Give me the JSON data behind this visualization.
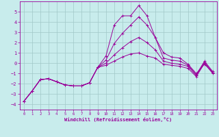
{
  "xlabel": "Windchill (Refroidissement éolien,°C)",
  "background_color": "#c8ecec",
  "line_color": "#990099",
  "grid_color": "#a0c8c8",
  "xlim": [
    -0.5,
    23.5
  ],
  "ylim": [
    -4.5,
    6.0
  ],
  "xticks": [
    0,
    1,
    2,
    3,
    4,
    5,
    6,
    7,
    8,
    9,
    10,
    11,
    12,
    13,
    14,
    15,
    16,
    17,
    18,
    19,
    20,
    21,
    22,
    23
  ],
  "yticks": [
    -4,
    -3,
    -2,
    -1,
    0,
    1,
    2,
    3,
    4,
    5
  ],
  "series_x": [
    [
      0,
      1,
      2,
      3,
      4,
      5,
      6,
      7,
      8,
      9,
      10,
      11,
      12,
      13,
      14,
      15,
      16,
      17,
      18,
      19,
      20,
      21,
      22,
      23
    ],
    [
      0,
      1,
      2,
      3,
      4,
      5,
      6,
      7,
      8,
      9,
      10,
      11,
      12,
      13,
      14,
      15,
      16,
      17,
      18,
      19,
      20,
      21,
      22,
      23
    ],
    [
      0,
      1,
      2,
      3,
      4,
      5,
      6,
      7,
      8,
      9,
      10,
      11,
      12,
      13,
      14,
      15,
      16,
      17,
      18,
      19,
      20,
      21,
      22,
      23
    ],
    [
      0,
      1,
      2,
      3,
      4,
      5,
      6,
      7,
      8,
      9,
      10,
      11,
      12,
      13,
      14,
      15,
      16,
      17,
      18,
      19,
      20,
      21,
      22,
      23
    ]
  ],
  "series_y": [
    [
      -3.7,
      -2.7,
      -1.6,
      -1.5,
      -1.8,
      -2.1,
      -2.2,
      -2.2,
      -1.9,
      -0.4,
      0.7,
      3.7,
      4.6,
      4.6,
      5.6,
      4.6,
      2.5,
      1.0,
      0.6,
      0.5,
      -0.1,
      -1.0,
      -0.1,
      -0.9
    ],
    [
      -3.7,
      -2.7,
      -1.6,
      -1.5,
      -1.8,
      -2.1,
      -2.2,
      -2.2,
      -1.9,
      -0.4,
      0.3,
      1.9,
      2.9,
      3.7,
      4.5,
      3.7,
      2.5,
      0.5,
      0.3,
      0.2,
      -0.2,
      -1.1,
      0.2,
      -0.8
    ],
    [
      -3.7,
      -2.7,
      -1.6,
      -1.5,
      -1.8,
      -2.1,
      -2.2,
      -2.2,
      -1.9,
      -0.4,
      0.0,
      0.8,
      1.5,
      2.1,
      2.5,
      2.0,
      1.3,
      0.2,
      0.0,
      -0.1,
      -0.3,
      -1.2,
      0.1,
      -0.9
    ],
    [
      -3.7,
      -2.7,
      -1.6,
      -1.5,
      -1.8,
      -2.1,
      -2.2,
      -2.2,
      -1.9,
      -0.4,
      -0.2,
      0.2,
      0.6,
      0.9,
      1.0,
      0.7,
      0.5,
      -0.1,
      -0.2,
      -0.3,
      -0.5,
      -1.3,
      0.0,
      -1.0
    ]
  ]
}
